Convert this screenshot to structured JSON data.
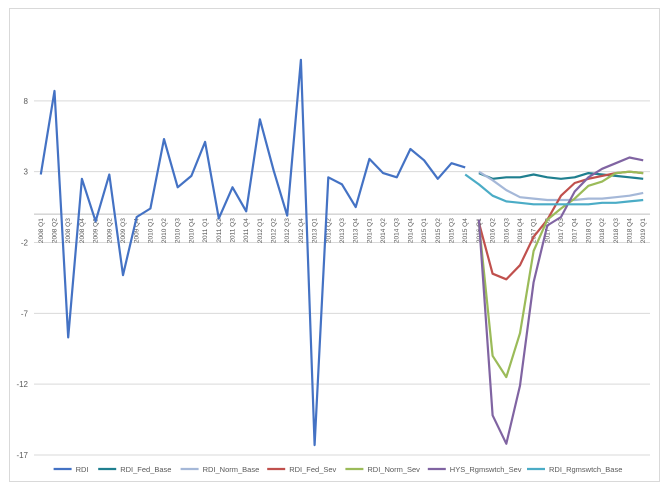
{
  "chart_data": {
    "type": "line",
    "title": "",
    "xlabel": "",
    "ylabel": "",
    "ylim": [
      -17,
      13
    ],
    "y_ticks": [
      8,
      3,
      -2,
      -7,
      -12,
      -17
    ],
    "grid": true,
    "legend_position": "bottom",
    "categories": [
      "2008 Q1",
      "2008 Q2",
      "2008 Q3",
      "2008 Q4",
      "2009 Q1",
      "2009 Q2",
      "2009 Q3",
      "2009 Q4",
      "2010 Q1",
      "2010 Q2",
      "2010 Q3",
      "2010 Q4",
      "2011 Q1",
      "2011 Q2",
      "2011 Q3",
      "2011 Q4",
      "2012 Q1",
      "2012 Q2",
      "2012 Q3",
      "2012 Q4",
      "2013 Q1",
      "2013 Q2",
      "2013 Q3",
      "2013 Q4",
      "2014 Q1",
      "2014 Q2",
      "2014 Q3",
      "2014 Q4",
      "2015 Q1",
      "2015 Q2",
      "2015 Q3",
      "2015 Q4",
      "2016 Q1",
      "2016 Q2",
      "2016 Q3",
      "2016 Q4",
      "2017 Q1",
      "2017 Q2",
      "2017 Q3",
      "2017 Q4",
      "2018 Q1",
      "2018 Q2",
      "2018 Q3",
      "2018 Q4",
      "2019 Q1"
    ],
    "series": [
      {
        "name": "RDI",
        "color": "#4472c4",
        "values": [
          2.8,
          8.7,
          -8.7,
          2.5,
          -0.5,
          2.8,
          -4.3,
          -0.2,
          0.4,
          5.3,
          1.9,
          2.7,
          5.1,
          -0.3,
          1.9,
          0.2,
          6.7,
          3.1,
          -0.1,
          10.9,
          -16.3,
          2.6,
          2.1,
          0.5,
          3.9,
          2.9,
          2.6,
          4.6,
          3.8,
          2.5,
          3.6,
          3.3,
          null,
          null,
          null,
          null,
          null,
          null,
          null,
          null,
          null,
          null,
          null,
          null,
          null
        ]
      },
      {
        "name": "RDI_Fed_Base",
        "color": "#1f7f8f",
        "values": [
          null,
          null,
          null,
          null,
          null,
          null,
          null,
          null,
          null,
          null,
          null,
          null,
          null,
          null,
          null,
          null,
          null,
          null,
          null,
          null,
          null,
          null,
          null,
          null,
          null,
          null,
          null,
          null,
          null,
          null,
          null,
          null,
          2.9,
          2.5,
          2.6,
          2.6,
          2.8,
          2.6,
          2.5,
          2.6,
          2.9,
          2.8,
          2.7,
          2.6,
          2.5
        ]
      },
      {
        "name": "RDI_Norm_Base",
        "color": "#a5b8d8",
        "values": [
          null,
          null,
          null,
          null,
          null,
          null,
          null,
          null,
          null,
          null,
          null,
          null,
          null,
          null,
          null,
          null,
          null,
          null,
          null,
          null,
          null,
          null,
          null,
          null,
          null,
          null,
          null,
          null,
          null,
          null,
          null,
          null,
          3.0,
          2.4,
          1.7,
          1.2,
          1.1,
          1.0,
          1.0,
          1.0,
          1.1,
          1.1,
          1.2,
          1.3,
          1.5
        ]
      },
      {
        "name": "RDI_Fed_Sev",
        "color": "#c0504d",
        "values": [
          null,
          null,
          null,
          null,
          null,
          null,
          null,
          null,
          null,
          null,
          null,
          null,
          null,
          null,
          null,
          null,
          null,
          null,
          null,
          null,
          null,
          null,
          null,
          null,
          null,
          null,
          null,
          null,
          null,
          null,
          null,
          null,
          -0.6,
          -4.2,
          -4.6,
          -3.6,
          -1.6,
          -0.4,
          1.3,
          2.2,
          2.5,
          2.7,
          2.9,
          3.0,
          2.9
        ]
      },
      {
        "name": "RDI_Norm_Sev",
        "color": "#9bbb59",
        "values": [
          null,
          null,
          null,
          null,
          null,
          null,
          null,
          null,
          null,
          null,
          null,
          null,
          null,
          null,
          null,
          null,
          null,
          null,
          null,
          null,
          null,
          null,
          null,
          null,
          null,
          null,
          null,
          null,
          null,
          null,
          null,
          null,
          -0.6,
          -10.0,
          -11.5,
          -8.4,
          -2.6,
          -0.4,
          0.4,
          1.1,
          2.0,
          2.3,
          2.9,
          3.0,
          2.9
        ]
      },
      {
        "name": "HYS_Rgmswtch_Sev",
        "color": "#8064a2",
        "values": [
          null,
          null,
          null,
          null,
          null,
          null,
          null,
          null,
          null,
          null,
          null,
          null,
          null,
          null,
          null,
          null,
          null,
          null,
          null,
          null,
          null,
          null,
          null,
          null,
          null,
          null,
          null,
          null,
          null,
          null,
          null,
          null,
          -0.4,
          -14.2,
          -16.2,
          -12.1,
          -4.8,
          -0.8,
          -0.2,
          1.6,
          2.6,
          3.2,
          3.6,
          4.0,
          3.8
        ]
      },
      {
        "name": "RDI_Rgmswtch_Base",
        "color": "#4bacc6",
        "values": [
          null,
          null,
          null,
          null,
          null,
          null,
          null,
          null,
          null,
          null,
          null,
          null,
          null,
          null,
          null,
          null,
          null,
          null,
          null,
          null,
          null,
          null,
          null,
          null,
          null,
          null,
          null,
          null,
          null,
          null,
          null,
          2.8,
          2.1,
          1.3,
          0.9,
          0.8,
          0.7,
          0.7,
          0.7,
          0.7,
          0.7,
          0.8,
          0.8,
          0.9,
          1.0
        ]
      }
    ]
  }
}
